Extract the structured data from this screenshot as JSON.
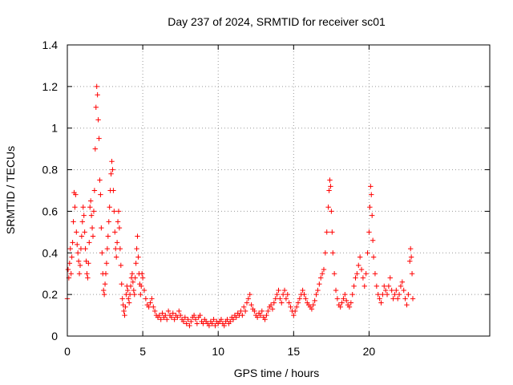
{
  "chart_data": {
    "type": "scatter",
    "title": "Day 237 of 2024, SRMTID for receiver sc01",
    "xlabel": "GPS time / hours",
    "ylabel": "SRMTID / TECUs",
    "xlim": [
      0,
      28
    ],
    "ylim": [
      0,
      1.4
    ],
    "x_ticks": [
      0,
      5,
      10,
      15,
      20
    ],
    "y_ticks": [
      0,
      0.2,
      0.4,
      0.6,
      0.8,
      1,
      1.2,
      1.4
    ],
    "x_tick_labels": [
      "0",
      "5",
      "10",
      "15",
      "20"
    ],
    "y_tick_labels": [
      "0",
      "0.2",
      "0.4",
      "0.6",
      "0.8",
      "1",
      "1.2",
      "1.4"
    ],
    "grid": true,
    "marker": "+",
    "color": "#ff0000",
    "series": [
      {
        "name": "SRMTID",
        "points": [
          [
            0.0,
            0.18
          ],
          [
            0.05,
            0.32
          ],
          [
            0.1,
            0.28
          ],
          [
            0.15,
            0.35
          ],
          [
            0.2,
            0.42
          ],
          [
            0.25,
            0.3
          ],
          [
            0.3,
            0.38
          ],
          [
            0.35,
            0.45
          ],
          [
            0.4,
            0.55
          ],
          [
            0.45,
            0.69
          ],
          [
            0.5,
            0.62
          ],
          [
            0.55,
            0.68
          ],
          [
            0.6,
            0.5
          ],
          [
            0.65,
            0.44
          ],
          [
            0.7,
            0.4
          ],
          [
            0.75,
            0.36
          ],
          [
            0.8,
            0.3
          ],
          [
            0.85,
            0.34
          ],
          [
            0.9,
            0.42
          ],
          [
            0.95,
            0.48
          ],
          [
            1.0,
            0.55
          ],
          [
            1.05,
            0.62
          ],
          [
            1.1,
            0.58
          ],
          [
            1.15,
            0.5
          ],
          [
            1.2,
            0.42
          ],
          [
            1.25,
            0.36
          ],
          [
            1.3,
            0.3
          ],
          [
            1.35,
            0.28
          ],
          [
            1.4,
            0.35
          ],
          [
            1.45,
            0.45
          ],
          [
            1.5,
            0.62
          ],
          [
            1.55,
            0.65
          ],
          [
            1.6,
            0.58
          ],
          [
            1.65,
            0.52
          ],
          [
            1.7,
            0.48
          ],
          [
            1.75,
            0.6
          ],
          [
            1.8,
            0.7
          ],
          [
            1.85,
            0.9
          ],
          [
            1.9,
            1.1
          ],
          [
            1.95,
            1.2
          ],
          [
            2.0,
            1.16
          ],
          [
            2.05,
            1.04
          ],
          [
            2.1,
            0.95
          ],
          [
            2.15,
            0.75
          ],
          [
            2.2,
            0.68
          ],
          [
            2.25,
            0.52
          ],
          [
            2.3,
            0.4
          ],
          [
            2.35,
            0.3
          ],
          [
            2.4,
            0.22
          ],
          [
            2.45,
            0.2
          ],
          [
            2.5,
            0.25
          ],
          [
            2.55,
            0.3
          ],
          [
            2.6,
            0.35
          ],
          [
            2.65,
            0.42
          ],
          [
            2.7,
            0.48
          ],
          [
            2.75,
            0.55
          ],
          [
            2.8,
            0.62
          ],
          [
            2.85,
            0.7
          ],
          [
            2.9,
            0.78
          ],
          [
            2.95,
            0.84
          ],
          [
            3.0,
            0.8
          ],
          [
            3.05,
            0.7
          ],
          [
            3.1,
            0.6
          ],
          [
            3.15,
            0.5
          ],
          [
            3.2,
            0.42
          ],
          [
            3.25,
            0.38
          ],
          [
            3.3,
            0.45
          ],
          [
            3.35,
            0.55
          ],
          [
            3.4,
            0.6
          ],
          [
            3.45,
            0.52
          ],
          [
            3.5,
            0.42
          ],
          [
            3.55,
            0.34
          ],
          [
            3.6,
            0.25
          ],
          [
            3.65,
            0.18
          ],
          [
            3.7,
            0.15
          ],
          [
            3.75,
            0.12
          ],
          [
            3.8,
            0.1
          ],
          [
            3.85,
            0.14
          ],
          [
            3.9,
            0.2
          ],
          [
            3.95,
            0.24
          ],
          [
            4.0,
            0.22
          ],
          [
            4.05,
            0.18
          ],
          [
            4.1,
            0.16
          ],
          [
            4.15,
            0.2
          ],
          [
            4.2,
            0.24
          ],
          [
            4.25,
            0.28
          ],
          [
            4.3,
            0.3
          ],
          [
            4.35,
            0.26
          ],
          [
            4.4,
            0.22
          ],
          [
            4.45,
            0.2
          ],
          [
            4.5,
            0.28
          ],
          [
            4.55,
            0.35
          ],
          [
            4.6,
            0.42
          ],
          [
            4.65,
            0.48
          ],
          [
            4.7,
            0.38
          ],
          [
            4.75,
            0.3
          ],
          [
            4.8,
            0.25
          ],
          [
            4.85,
            0.2
          ],
          [
            4.9,
            0.24
          ],
          [
            4.95,
            0.3
          ],
          [
            5.0,
            0.28
          ],
          [
            5.1,
            0.22
          ],
          [
            5.2,
            0.18
          ],
          [
            5.3,
            0.15
          ],
          [
            5.4,
            0.14
          ],
          [
            5.5,
            0.16
          ],
          [
            5.6,
            0.18
          ],
          [
            5.7,
            0.14
          ],
          [
            5.8,
            0.12
          ],
          [
            5.9,
            0.1
          ],
          [
            6.0,
            0.09
          ],
          [
            6.1,
            0.1
          ],
          [
            6.2,
            0.08
          ],
          [
            6.3,
            0.11
          ],
          [
            6.4,
            0.09
          ],
          [
            6.5,
            0.1
          ],
          [
            6.6,
            0.08
          ],
          [
            6.7,
            0.12
          ],
          [
            6.8,
            0.1
          ],
          [
            6.9,
            0.09
          ],
          [
            7.0,
            0.11
          ],
          [
            7.1,
            0.08
          ],
          [
            7.2,
            0.1
          ],
          [
            7.3,
            0.09
          ],
          [
            7.4,
            0.12
          ],
          [
            7.5,
            0.1
          ],
          [
            7.6,
            0.08
          ],
          [
            7.7,
            0.07
          ],
          [
            7.8,
            0.09
          ],
          [
            7.9,
            0.06
          ],
          [
            8.0,
            0.08
          ],
          [
            8.1,
            0.05
          ],
          [
            8.2,
            0.07
          ],
          [
            8.3,
            0.09
          ],
          [
            8.4,
            0.1
          ],
          [
            8.5,
            0.08
          ],
          [
            8.6,
            0.06
          ],
          [
            8.7,
            0.09
          ],
          [
            8.8,
            0.1
          ],
          [
            8.9,
            0.07
          ],
          [
            9.0,
            0.06
          ],
          [
            9.1,
            0.08
          ],
          [
            9.2,
            0.07
          ],
          [
            9.3,
            0.06
          ],
          [
            9.4,
            0.05
          ],
          [
            9.5,
            0.07
          ],
          [
            9.6,
            0.06
          ],
          [
            9.7,
            0.08
          ],
          [
            9.8,
            0.05
          ],
          [
            9.9,
            0.07
          ],
          [
            10.0,
            0.06
          ],
          [
            10.1,
            0.07
          ],
          [
            10.2,
            0.08
          ],
          [
            10.3,
            0.06
          ],
          [
            10.4,
            0.05
          ],
          [
            10.5,
            0.07
          ],
          [
            10.6,
            0.08
          ],
          [
            10.7,
            0.06
          ],
          [
            10.8,
            0.07
          ],
          [
            10.9,
            0.09
          ],
          [
            11.0,
            0.08
          ],
          [
            11.1,
            0.1
          ],
          [
            11.2,
            0.09
          ],
          [
            11.3,
            0.11
          ],
          [
            11.4,
            0.1
          ],
          [
            11.5,
            0.12
          ],
          [
            11.6,
            0.1
          ],
          [
            11.7,
            0.14
          ],
          [
            11.8,
            0.12
          ],
          [
            11.9,
            0.16
          ],
          [
            12.0,
            0.18
          ],
          [
            12.1,
            0.2
          ],
          [
            12.2,
            0.15
          ],
          [
            12.3,
            0.13
          ],
          [
            12.4,
            0.12
          ],
          [
            12.5,
            0.1
          ],
          [
            12.6,
            0.09
          ],
          [
            12.7,
            0.11
          ],
          [
            12.8,
            0.1
          ],
          [
            12.9,
            0.12
          ],
          [
            13.0,
            0.09
          ],
          [
            13.1,
            0.08
          ],
          [
            13.2,
            0.1
          ],
          [
            13.3,
            0.12
          ],
          [
            13.4,
            0.14
          ],
          [
            13.5,
            0.15
          ],
          [
            13.6,
            0.13
          ],
          [
            13.7,
            0.16
          ],
          [
            13.8,
            0.18
          ],
          [
            13.9,
            0.2
          ],
          [
            14.0,
            0.22
          ],
          [
            14.1,
            0.18
          ],
          [
            14.2,
            0.16
          ],
          [
            14.3,
            0.2
          ],
          [
            14.4,
            0.22
          ],
          [
            14.5,
            0.18
          ],
          [
            14.6,
            0.2
          ],
          [
            14.7,
            0.16
          ],
          [
            14.8,
            0.14
          ],
          [
            14.9,
            0.12
          ],
          [
            15.0,
            0.1
          ],
          [
            15.1,
            0.12
          ],
          [
            15.2,
            0.14
          ],
          [
            15.3,
            0.16
          ],
          [
            15.4,
            0.18
          ],
          [
            15.5,
            0.2
          ],
          [
            15.6,
            0.22
          ],
          [
            15.7,
            0.2
          ],
          [
            15.8,
            0.18
          ],
          [
            15.9,
            0.16
          ],
          [
            16.0,
            0.15
          ],
          [
            16.1,
            0.14
          ],
          [
            16.2,
            0.13
          ],
          [
            16.3,
            0.15
          ],
          [
            16.4,
            0.17
          ],
          [
            16.5,
            0.2
          ],
          [
            16.6,
            0.22
          ],
          [
            16.7,
            0.25
          ],
          [
            16.8,
            0.28
          ],
          [
            16.9,
            0.3
          ],
          [
            17.0,
            0.32
          ],
          [
            17.1,
            0.4
          ],
          [
            17.2,
            0.5
          ],
          [
            17.3,
            0.62
          ],
          [
            17.35,
            0.7
          ],
          [
            17.4,
            0.75
          ],
          [
            17.45,
            0.72
          ],
          [
            17.5,
            0.6
          ],
          [
            17.55,
            0.5
          ],
          [
            17.6,
            0.4
          ],
          [
            17.7,
            0.3
          ],
          [
            17.8,
            0.22
          ],
          [
            17.9,
            0.18
          ],
          [
            18.0,
            0.15
          ],
          [
            18.1,
            0.14
          ],
          [
            18.2,
            0.16
          ],
          [
            18.3,
            0.18
          ],
          [
            18.4,
            0.2
          ],
          [
            18.5,
            0.17
          ],
          [
            18.6,
            0.15
          ],
          [
            18.7,
            0.14
          ],
          [
            18.8,
            0.16
          ],
          [
            18.9,
            0.2
          ],
          [
            19.0,
            0.24
          ],
          [
            19.1,
            0.28
          ],
          [
            19.2,
            0.3
          ],
          [
            19.3,
            0.34
          ],
          [
            19.4,
            0.38
          ],
          [
            19.5,
            0.32
          ],
          [
            19.6,
            0.28
          ],
          [
            19.7,
            0.24
          ],
          [
            19.8,
            0.3
          ],
          [
            19.9,
            0.4
          ],
          [
            20.0,
            0.5
          ],
          [
            20.05,
            0.62
          ],
          [
            20.1,
            0.72
          ],
          [
            20.15,
            0.68
          ],
          [
            20.2,
            0.58
          ],
          [
            20.25,
            0.46
          ],
          [
            20.3,
            0.38
          ],
          [
            20.4,
            0.3
          ],
          [
            20.5,
            0.24
          ],
          [
            20.6,
            0.2
          ],
          [
            20.7,
            0.18
          ],
          [
            20.8,
            0.16
          ],
          [
            20.9,
            0.2
          ],
          [
            21.0,
            0.24
          ],
          [
            21.1,
            0.22
          ],
          [
            21.2,
            0.2
          ],
          [
            21.3,
            0.24
          ],
          [
            21.4,
            0.28
          ],
          [
            21.5,
            0.22
          ],
          [
            21.6,
            0.18
          ],
          [
            21.7,
            0.2
          ],
          [
            21.8,
            0.22
          ],
          [
            21.9,
            0.18
          ],
          [
            22.0,
            0.2
          ],
          [
            22.1,
            0.24
          ],
          [
            22.2,
            0.26
          ],
          [
            22.3,
            0.22
          ],
          [
            22.4,
            0.18
          ],
          [
            22.5,
            0.15
          ],
          [
            22.6,
            0.2
          ],
          [
            22.7,
            0.36
          ],
          [
            22.75,
            0.42
          ],
          [
            22.8,
            0.38
          ],
          [
            22.85,
            0.3
          ],
          [
            22.9,
            0.18
          ]
        ]
      }
    ]
  }
}
